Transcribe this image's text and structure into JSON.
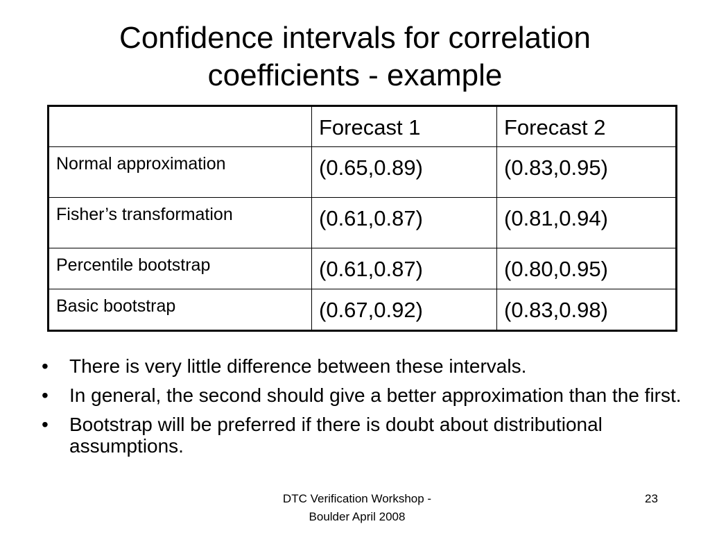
{
  "title": [
    "Confidence intervals for correlation",
    "coefficients - example"
  ],
  "table": {
    "header": [
      "Forecast 1",
      "Forecast 2"
    ],
    "rows": [
      [
        "Normal approximation",
        "(0.65,0.89)",
        "(0.83,0.95)"
      ],
      [
        "Fisher’s transformation",
        "(0.61,0.87)",
        "(0.81,0.94)"
      ],
      [
        "Percentile bootstrap",
        "(0.61,0.87)",
        "(0.80,0.95)"
      ],
      [
        "Basic bootstrap",
        "(0.67,0.92)",
        "(0.83,0.98)"
      ]
    ]
  },
  "bullets": [
    "There is very little difference between these intervals.",
    "In general, the second should give a better approximation than the first.",
    "Bootstrap will be preferred if there is doubt about distributional assumptions."
  ],
  "footer": {
    "text": [
      "DTC Verification Workshop -",
      "Boulder April 2008"
    ],
    "page": "23"
  }
}
